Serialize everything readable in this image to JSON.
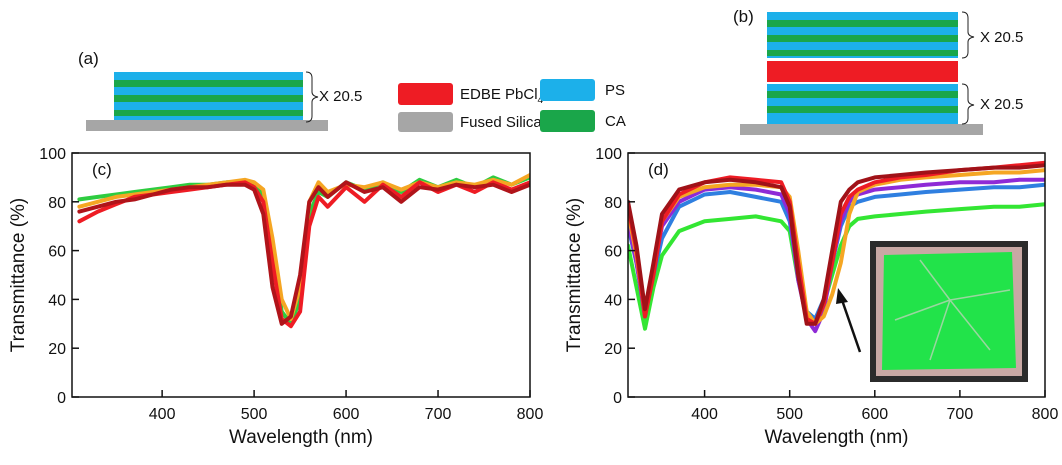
{
  "diagrams": {
    "a": {
      "label": "(a)",
      "repeat": "X 20.5"
    },
    "b": {
      "label": "(b)",
      "repeat_top": "X 20.5",
      "repeat_bottom": "X 20.5"
    }
  },
  "legend": [
    {
      "label": "EDBE PbCl",
      "subscript": "4",
      "color": "#ee1c24"
    },
    {
      "label": "Fused Silica",
      "color": "#a6a6a6"
    },
    {
      "label": "PS",
      "color": "#1cb0ea"
    },
    {
      "label": "CA",
      "color": "#1aa64a"
    }
  ],
  "chart_data": [
    {
      "type": "line",
      "panel_label": "(c)",
      "x_label": "Wavelength (nm)",
      "y_label": "Transmittance (%)",
      "xlim": [
        302,
        800
      ],
      "ylim": [
        0,
        100
      ],
      "xticks": [
        400,
        500,
        600,
        700,
        800
      ],
      "yticks": [
        0,
        20,
        40,
        60,
        80,
        100
      ],
      "x": [
        310,
        330,
        350,
        370,
        390,
        410,
        430,
        450,
        470,
        490,
        500,
        510,
        520,
        530,
        540,
        550,
        560,
        570,
        580,
        600,
        620,
        640,
        660,
        680,
        700,
        720,
        740,
        760,
        780,
        800
      ],
      "series": [
        {
          "color": "#2ecc40",
          "values": [
            81,
            82,
            83,
            84,
            85,
            86,
            87,
            87,
            88,
            88,
            87,
            83,
            60,
            35,
            30,
            40,
            75,
            84,
            82,
            88,
            85,
            88,
            84,
            89,
            86,
            89,
            86,
            90,
            87,
            90
          ]
        },
        {
          "color": "#f5a623",
          "values": [
            78,
            80,
            82,
            83,
            84,
            85,
            86,
            87,
            88,
            89,
            88,
            85,
            65,
            40,
            32,
            45,
            80,
            88,
            84,
            87,
            86,
            88,
            85,
            88,
            86,
            88,
            87,
            89,
            87,
            91
          ]
        },
        {
          "color": "#ee1c24",
          "values": [
            72,
            76,
            79,
            82,
            83,
            84,
            85,
            86,
            87,
            88,
            86,
            80,
            55,
            32,
            29,
            35,
            70,
            82,
            78,
            86,
            80,
            87,
            82,
            88,
            84,
            87,
            84,
            88,
            85,
            88
          ]
        },
        {
          "color": "#b0141a",
          "values": [
            76,
            78,
            80,
            81,
            83,
            85,
            86,
            86,
            87,
            87,
            85,
            75,
            45,
            30,
            33,
            50,
            80,
            86,
            82,
            88,
            84,
            86,
            80,
            86,
            85,
            87,
            86,
            87,
            84,
            87
          ]
        }
      ]
    },
    {
      "type": "line",
      "panel_label": "(d)",
      "x_label": "Wavelength (nm)",
      "y_label": "Transmittance (%)",
      "xlim": [
        310,
        800
      ],
      "ylim": [
        0,
        100
      ],
      "xticks": [
        400,
        500,
        600,
        700,
        800
      ],
      "yticks": [
        0,
        20,
        40,
        60,
        80,
        100
      ],
      "x": [
        310,
        320,
        330,
        340,
        350,
        370,
        400,
        430,
        460,
        490,
        500,
        510,
        520,
        530,
        540,
        550,
        560,
        570,
        580,
        600,
        630,
        660,
        700,
        740,
        770,
        800
      ],
      "series": [
        {
          "color": "#33e633",
          "values": [
            62,
            45,
            28,
            45,
            58,
            68,
            72,
            73,
            74,
            72,
            68,
            48,
            35,
            32,
            38,
            50,
            62,
            70,
            73,
            74,
            75,
            76,
            77,
            78,
            78,
            79
          ]
        },
        {
          "color": "#2f7fe0",
          "values": [
            70,
            55,
            35,
            50,
            65,
            78,
            83,
            84,
            82,
            80,
            72,
            50,
            35,
            32,
            40,
            55,
            70,
            78,
            80,
            82,
            83,
            84,
            85,
            86,
            86,
            87
          ]
        },
        {
          "color": "#8e2ad6",
          "values": [
            72,
            55,
            33,
            52,
            70,
            80,
            85,
            86,
            85,
            83,
            75,
            48,
            32,
            27,
            35,
            55,
            72,
            80,
            83,
            85,
            86,
            87,
            88,
            88,
            89,
            89
          ]
        },
        {
          "color": "#f5a623",
          "values": [
            76,
            58,
            34,
            52,
            72,
            82,
            86,
            87,
            87,
            86,
            82,
            60,
            35,
            30,
            33,
            42,
            55,
            75,
            84,
            87,
            89,
            90,
            91,
            92,
            92,
            93
          ]
        },
        {
          "color": "#ee1c24",
          "values": [
            78,
            60,
            33,
            50,
            72,
            83,
            88,
            90,
            89,
            88,
            80,
            55,
            32,
            30,
            38,
            55,
            75,
            82,
            85,
            88,
            90,
            91,
            93,
            94,
            95,
            96
          ]
        },
        {
          "color": "#a01218",
          "values": [
            80,
            62,
            36,
            55,
            75,
            85,
            88,
            89,
            88,
            86,
            78,
            50,
            30,
            30,
            40,
            60,
            80,
            85,
            88,
            90,
            91,
            92,
            93,
            94,
            94,
            95
          ]
        }
      ]
    }
  ]
}
